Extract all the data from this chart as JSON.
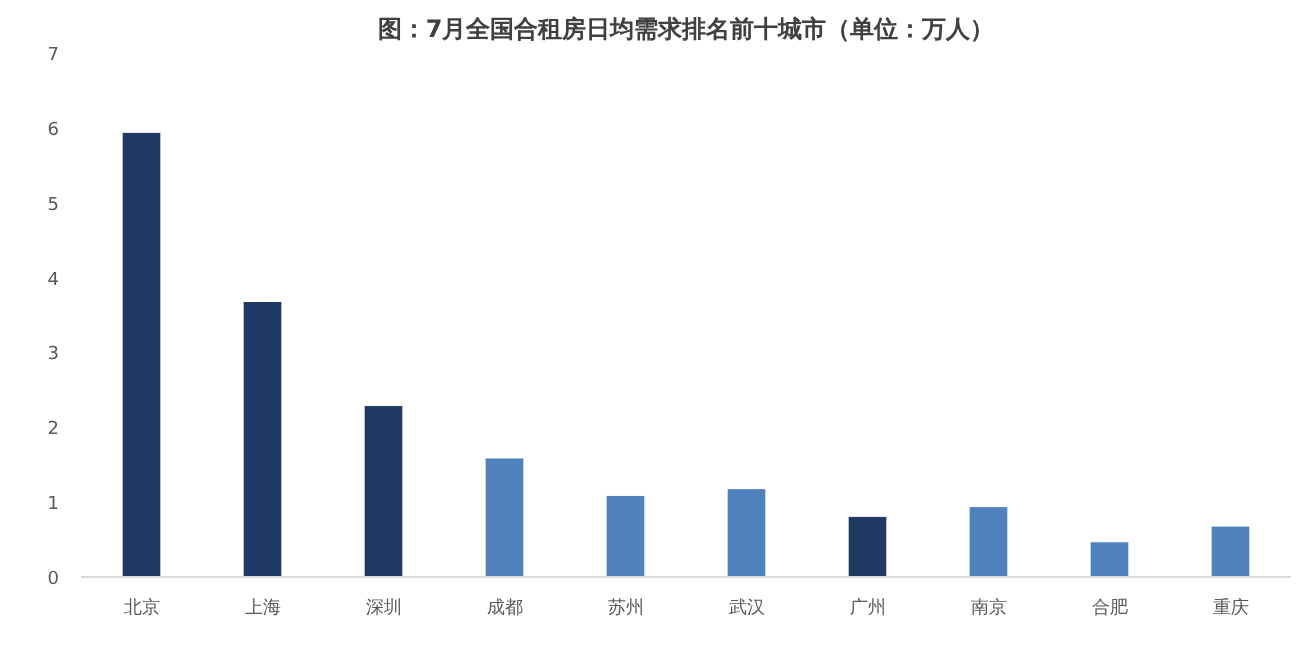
{
  "chart_data": {
    "type": "bar",
    "title": "图：7月全国合租房日均需求排名前十城市（单位：万人）",
    "categories": [
      "北京",
      "上海",
      "深圳",
      "成都",
      "苏州",
      "武汉",
      "广州",
      "南京",
      "合肥",
      "重庆"
    ],
    "values": [
      5.94,
      3.68,
      2.29,
      1.59,
      1.09,
      1.18,
      0.81,
      0.94,
      0.47,
      0.68
    ],
    "colors": [
      "#1f3864",
      "#1f3864",
      "#1f3864",
      "#4f81bd",
      "#4f81bd",
      "#4f81bd",
      "#1f3864",
      "#4f81bd",
      "#4f81bd",
      "#4f81bd"
    ],
    "ylim": [
      0,
      7
    ],
    "yticks": [
      0,
      1,
      2,
      3,
      4,
      5,
      6,
      7
    ],
    "grid": false
  }
}
